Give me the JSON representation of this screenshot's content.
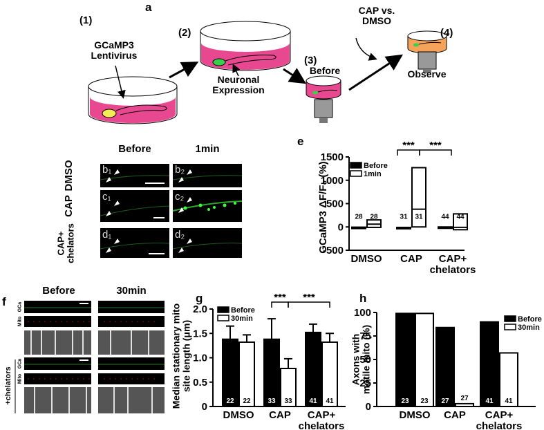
{
  "panel_a": {
    "label": "a",
    "steps": [
      "(1)",
      "(2)",
      "(3)",
      "(4)"
    ],
    "lentivirus": "GCaMP3 Lentivirus",
    "expression": "Neuronal Expression",
    "before": "Before",
    "treatment": "CAP vs. DMSO",
    "observe": "Observe"
  },
  "panel_bcd": {
    "columns": [
      "Before",
      "1min"
    ],
    "rows": [
      "DMSO",
      "CAP",
      "CAP+ chelators"
    ],
    "image_labels": [
      "b₁",
      "b₂",
      "c₁",
      "c₂",
      "d₁",
      "d₂"
    ]
  },
  "panel_f": {
    "label": "f",
    "columns": [
      "Before",
      "30min"
    ],
    "channels": [
      "GCa",
      "Mito"
    ],
    "row_label": "+chelators"
  },
  "chart_data": [
    {
      "type": "box",
      "label": "e",
      "y_label": "GCaMP3  ΔF/F₀ (%)",
      "categories": [
        "DMSO",
        "CAP",
        "CAP+ chelators"
      ],
      "ylim": [
        -500,
        1500
      ],
      "yticks": [
        -500,
        0,
        500,
        1000,
        1500
      ],
      "legend": "upper left",
      "significance": [
        "***",
        "***"
      ],
      "series": [
        {
          "name": "Before",
          "color": "#000000",
          "low": [
            -25,
            -30,
            -20
          ],
          "median": [
            -15,
            -20,
            -10
          ],
          "high": [
            -5,
            -10,
            0
          ],
          "n": [
            28,
            31,
            44
          ]
        },
        {
          "name": "1min",
          "color": "#ffffff",
          "low": [
            -10,
            0,
            -60
          ],
          "median": [
            60,
            380,
            -10
          ],
          "high": [
            150,
            1270,
            280
          ],
          "n": [
            28,
            31,
            44
          ]
        }
      ]
    },
    {
      "type": "bar",
      "label": "g",
      "y_label": "Median stationary mito site length (μm)",
      "categories": [
        "DMSO",
        "CAP",
        "CAP+ chelators"
      ],
      "ylim": [
        0,
        2
      ],
      "yticks": [
        0,
        0.5,
        {
          "value": 1,
          "label": "1.0"
        },
        1.5,
        {
          "value": 2,
          "label": "2.0"
        }
      ],
      "legend": "upper left",
      "significance": [
        "***",
        "***"
      ],
      "series": [
        {
          "name": "Before",
          "color": "#000000",
          "values": [
            1.38,
            1.38,
            1.52
          ],
          "errors": [
            0.27,
            0.42,
            0.17
          ],
          "n": [
            22,
            33,
            41
          ]
        },
        {
          "name": "30min",
          "color": "#ffffff",
          "values": [
            1.32,
            0.78,
            1.32
          ],
          "errors": [
            0.15,
            0.2,
            0.18
          ],
          "n": [
            22,
            33,
            41
          ]
        }
      ]
    },
    {
      "type": "bar",
      "label": "h",
      "y_label": "Axons with motile mito (%)",
      "categories": [
        "DMSO",
        "CAP",
        "CAP+ chelators"
      ],
      "ylim": [
        0,
        100
      ],
      "yticks": [
        0,
        25,
        50,
        75,
        100
      ],
      "legend": "upper right",
      "series": [
        {
          "name": "Before",
          "color": "#000000",
          "values": [
            99,
            84,
            90
          ],
          "n": [
            23,
            27,
            41
          ]
        },
        {
          "name": "30min",
          "color": "#ffffff",
          "values": [
            99,
            3,
            57
          ],
          "n": [
            23,
            27,
            41
          ]
        }
      ]
    }
  ]
}
